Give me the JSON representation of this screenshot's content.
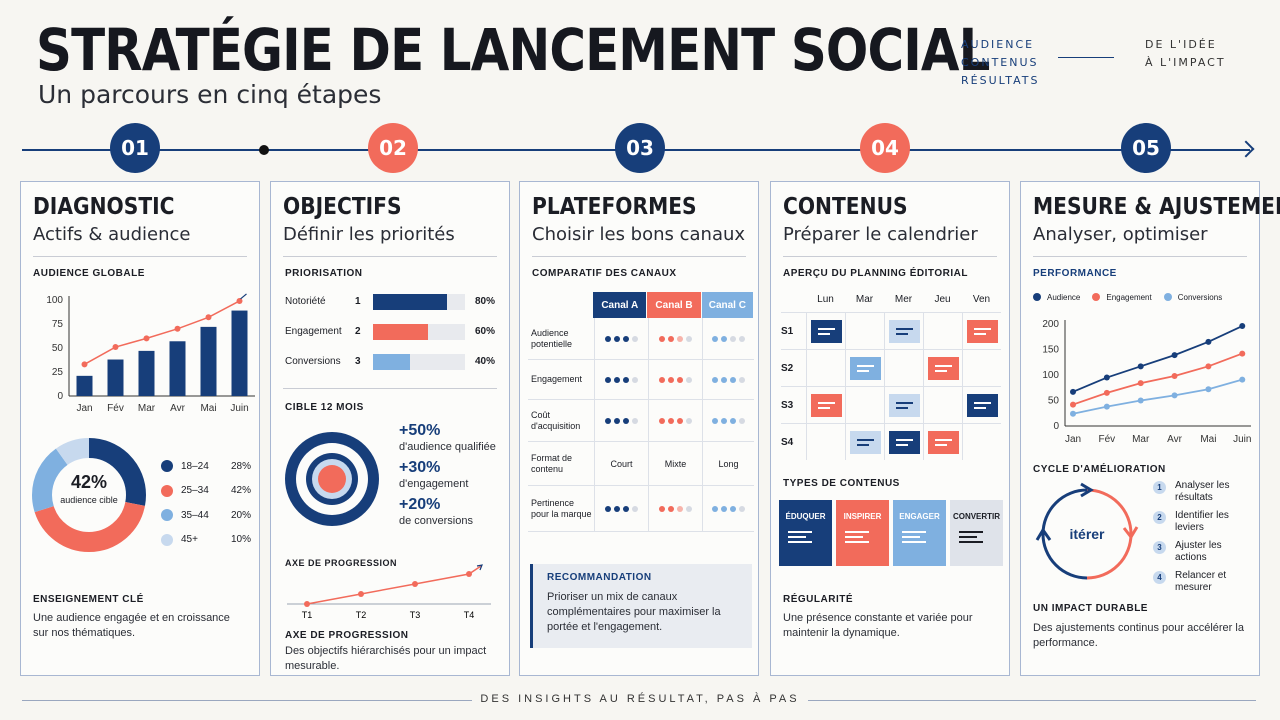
{
  "header": {
    "title": "STRATÉGIE DE LANCEMENT SOCIAL",
    "subtitle": "Un parcours en cinq étapes",
    "tags_left": [
      "AUDIENCE",
      "CONTENUS",
      "RÉSULTATS"
    ],
    "tags_right": [
      "DE L'IDÉE",
      "À L'IMPACT"
    ]
  },
  "colors": {
    "navy": "#173e7a",
    "coral": "#f26b5b",
    "light_blue": "#7fb0e0",
    "pale_blue": "#c7d9ee"
  },
  "steps": [
    {
      "num": "01",
      "title": "DIAGNOSTIC",
      "subtitle": "Actifs & audience"
    },
    {
      "num": "02",
      "title": "OBJECTIFS",
      "subtitle": "Définir les priorités"
    },
    {
      "num": "03",
      "title": "PLATEFORMES",
      "subtitle": "Choisir les bons canaux"
    },
    {
      "num": "04",
      "title": "CONTENUS",
      "subtitle": "Préparer le calendrier"
    },
    {
      "num": "05",
      "title": "MESURE & AJUSTEMENT",
      "subtitle": "Analyser, optimiser"
    }
  ],
  "diagnostic": {
    "chart_title": "AUDIENCE GLOBALE",
    "chart_data": {
      "type": "bar",
      "categories": [
        "Jan",
        "Fév",
        "Mar",
        "Avr",
        "Mai",
        "Juin"
      ],
      "values": [
        21,
        38,
        47,
        57,
        72,
        89
      ],
      "line_values": [
        33,
        51,
        60,
        70,
        82,
        99
      ],
      "yticks": [
        "0",
        "25",
        "50",
        "75",
        "100"
      ],
      "ylim": [
        0,
        100
      ]
    },
    "donut": {
      "center_value": "42%",
      "center_label": "audience cible",
      "slices": [
        {
          "label": "18–24",
          "value": "28%",
          "pct": 28,
          "color": "#173e7a"
        },
        {
          "label": "25–34",
          "value": "42%",
          "pct": 42,
          "color": "#f26b5b"
        },
        {
          "label": "35–44",
          "value": "20%",
          "pct": 20,
          "color": "#7fb0e0"
        },
        {
          "label": "45+",
          "value": "10%",
          "pct": 10,
          "color": "#c7d9ee"
        }
      ]
    },
    "insight_title": "ENSEIGNEMENT CLÉ",
    "insight_text": "Une audience engagée et en croissance sur nos thématiques."
  },
  "objectifs": {
    "prio_title": "PRIORISATION",
    "priorities": [
      {
        "label": "Notoriété",
        "rank": "1",
        "value": "80%",
        "pct": 80,
        "color": "#173e7a"
      },
      {
        "label": "Engagement",
        "rank": "2",
        "value": "60%",
        "pct": 60,
        "color": "#f26b5b"
      },
      {
        "label": "Conversions",
        "rank": "3",
        "value": "40%",
        "pct": 40,
        "color": "#7fb0e0"
      }
    ],
    "target_title": "CIBLE 12 MOIS",
    "targets": [
      {
        "value": "+50%",
        "label": "d'audience qualifiée"
      },
      {
        "value": "+30%",
        "label": "d'engagement"
      },
      {
        "value": "+20%",
        "label": "de conversions"
      }
    ],
    "axis_title": "AXE DE PROGRESSION",
    "axis_ticks": [
      "T1",
      "T2",
      "T3",
      "T4"
    ],
    "axis_title2": "AXE DE PROGRESSION",
    "axis_text": "Des objectifs hiérarchisés pour un impact mesurable."
  },
  "plateformes": {
    "table_title": "COMPARATIF DES CANAUX",
    "channels": [
      "Canal A",
      "Canal B",
      "Canal C"
    ],
    "rows": [
      {
        "label": "Audience potentielle",
        "a": 3,
        "b": 2.5,
        "c": 2
      },
      {
        "label": "Engagement",
        "a": 3,
        "b": 3,
        "c": 3
      },
      {
        "label": "Coût d'acquisition",
        "a": 3,
        "b": 3,
        "c": 3
      },
      {
        "label": "Format de contenu",
        "texts": [
          "Court",
          "Mixte",
          "Long"
        ]
      },
      {
        "label": "Pertinence pour la marque",
        "a": 3,
        "b": 2.5,
        "c": 3
      }
    ],
    "reco_title": "RECOMMANDATION",
    "reco_text": "Prioriser un mix de canaux complémentaires pour maximiser la portée et l'engagement."
  },
  "contenus": {
    "planning_title": "APERÇU DU PLANNING ÉDITORIAL",
    "days": [
      "Lun",
      "Mar",
      "Mer",
      "Jeu",
      "Ven"
    ],
    "weeks": [
      "S1",
      "S2",
      "S3",
      "S4"
    ],
    "grid": [
      [
        "navy",
        "",
        "pale",
        "",
        "coral"
      ],
      [
        "",
        "light",
        "",
        "coral",
        ""
      ],
      [
        "coral",
        "",
        "pale",
        "",
        "navy"
      ],
      [
        "",
        "pale",
        "navy",
        "coral",
        ""
      ]
    ],
    "types_title": "TYPES DE CONTENUS",
    "types": [
      {
        "label": "ÉDUQUER",
        "color": "#173e7a",
        "text_color": "#ffffff"
      },
      {
        "label": "INSPIRER",
        "color": "#f26b5b",
        "text_color": "#ffffff"
      },
      {
        "label": "ENGAGER",
        "color": "#7fb0e0",
        "text_color": "#ffffff"
      },
      {
        "label": "CONVERTIR",
        "color": "#dfe3ea",
        "text_color": "#1b1d24"
      }
    ],
    "regularity_title": "RÉGULARITÉ",
    "regularity_text": "Une présence constante et variée pour maintenir la dynamique."
  },
  "mesure": {
    "perf_title": "PERFORMANCE",
    "chart_data": {
      "type": "line",
      "x": [
        "Jan",
        "Fév",
        "Mar",
        "Avr",
        "Mai",
        "Juin"
      ],
      "yticks": [
        "0",
        "50",
        "100",
        "150",
        "200"
      ],
      "ylim": [
        0,
        200
      ],
      "series": [
        {
          "name": "Audience",
          "color": "#173e7a",
          "values": [
            67,
            95,
            117,
            139,
            165,
            196
          ]
        },
        {
          "name": "Engagement",
          "color": "#f26b5b",
          "values": [
            42,
            65,
            84,
            98,
            117,
            142
          ]
        },
        {
          "name": "Conversions",
          "color": "#7fb0e0",
          "values": [
            24,
            38,
            50,
            60,
            72,
            91
          ]
        }
      ]
    },
    "cycle_title": "CYCLE D'AMÉLIORATION",
    "cycle_center": "itérer",
    "cycle_steps": [
      {
        "n": "1",
        "label": "Analyser les résultats"
      },
      {
        "n": "2",
        "label": "Identifier les leviers"
      },
      {
        "n": "3",
        "label": "Ajuster les actions"
      },
      {
        "n": "4",
        "label": "Relancer et mesurer"
      }
    ],
    "impact_title": "UN IMPACT DURABLE",
    "impact_text": "Des ajustements continus pour accélérer la performance."
  },
  "footer": "DES INSIGHTS AU RÉSULTAT, PAS À PAS"
}
